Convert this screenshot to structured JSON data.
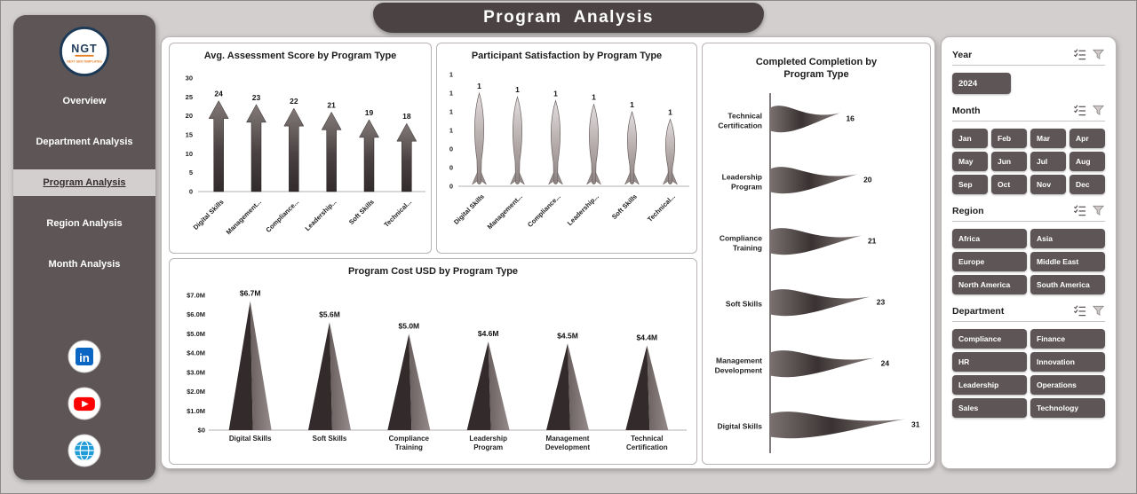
{
  "header": {
    "title": "Program Analysis"
  },
  "colors": {
    "background": "#d3cfcf",
    "banner": "#4b4343",
    "sidebar": "#5e5656",
    "button": "#5e5656",
    "shape_dark": "#352e2e",
    "shape_light": "#8d8282",
    "linkedin_blue": "#0a66c2",
    "youtube_red": "#ff0000",
    "globe_blue": "#1f9bd7",
    "logo_navy": "#1d3a57",
    "logo_orange": "#e67e22"
  },
  "sidebar": {
    "logo": {
      "brand": "NGT",
      "subtitle": "NEXT GEN TEMPLATES"
    },
    "items": [
      {
        "label": "Overview",
        "active": false
      },
      {
        "label": "Department Analysis",
        "active": false
      },
      {
        "label": "Program Analysis",
        "active": true
      },
      {
        "label": "Region Analysis",
        "active": false
      },
      {
        "label": "Month Analysis",
        "active": false
      }
    ],
    "social_icons": [
      "linkedin",
      "youtube",
      "website-globe"
    ]
  },
  "chart_data": [
    {
      "type": "bar",
      "variant": "arrow-columns",
      "title": "Avg. Assessment Score by Program Type",
      "categories": [
        "Digital Skills",
        "Management...",
        "Compliance...",
        "Leadership...",
        "Soft Skills",
        "Technical..."
      ],
      "values": [
        24,
        23,
        22,
        21,
        19,
        18
      ],
      "ylim": [
        0,
        30
      ],
      "yticks": [
        "0",
        "5",
        "10",
        "15",
        "20",
        "25",
        "30"
      ],
      "grid": false,
      "legend": false
    },
    {
      "type": "bar",
      "variant": "rocket-columns",
      "title": "Participant Satisfaction by Program Type",
      "categories": [
        "Digital Skills",
        "Management...",
        "Compliance...",
        "Leadership...",
        "Soft Skills",
        "Technical..."
      ],
      "labels": [
        "1",
        "1",
        "1",
        "1",
        "1",
        "1"
      ],
      "values": [
        1.0,
        0.96,
        0.92,
        0.88,
        0.8,
        0.72
      ],
      "ylim": [
        0,
        1.2
      ],
      "yticks": [
        "1",
        "1",
        "1",
        "1",
        "0",
        "0",
        "0"
      ],
      "grid": false,
      "legend": false
    },
    {
      "type": "bar",
      "variant": "cone-columns",
      "title": "Program Cost USD by Program Type",
      "categories": [
        "Digital Skills",
        "Soft Skills",
        "Compliance Training",
        "Leadership Program",
        "Management Development",
        "Technical Certification"
      ],
      "values": [
        6.7,
        5.6,
        5.0,
        4.6,
        4.5,
        4.4
      ],
      "labels": [
        "$6.7M",
        "$5.6M",
        "$5.0M",
        "$4.6M",
        "$4.5M",
        "$4.4M"
      ],
      "ylim": [
        0,
        7
      ],
      "yticks": [
        "$0",
        "$1.0M",
        "$2.0M",
        "$3.0M",
        "$4.0M",
        "$5.0M",
        "$6.0M",
        "$7.0M"
      ],
      "grid": false,
      "legend": false
    },
    {
      "type": "bar",
      "variant": "wave-horizontal",
      "title": "Completed Completion by Program Type",
      "categories": [
        "Technical Certification",
        "Leadership Program",
        "Compliance Training",
        "Soft Skills",
        "Management Development",
        "Digital Skills"
      ],
      "values": [
        16,
        20,
        21,
        23,
        24,
        31
      ],
      "xlim": [
        0,
        31
      ],
      "grid": false,
      "legend": false
    }
  ],
  "slicers": {
    "icons": [
      "multi-select",
      "clear-filter"
    ],
    "year": {
      "label": "Year",
      "options": [
        "2024"
      ],
      "selected": [
        "2024"
      ]
    },
    "month": {
      "label": "Month",
      "options": [
        "Jan",
        "Feb",
        "Mar",
        "Apr",
        "May",
        "Jun",
        "Jul",
        "Aug",
        "Sep",
        "Oct",
        "Nov",
        "Dec"
      ]
    },
    "region": {
      "label": "Region",
      "options": [
        "Africa",
        "Asia",
        "Europe",
        "Middle East",
        "North America",
        "South America"
      ]
    },
    "department": {
      "label": "Department",
      "options": [
        "Compliance",
        "Finance",
        "HR",
        "Innovation",
        "Leadership",
        "Operations",
        "Sales",
        "Technology"
      ]
    }
  }
}
